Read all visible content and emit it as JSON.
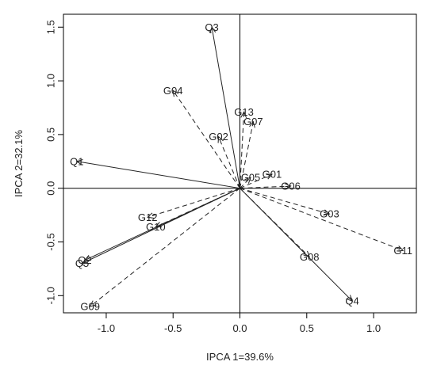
{
  "chart_data": {
    "type": "scatter",
    "subtype": "biplot",
    "title": "",
    "xlabel": "IPCA 1=39.6%",
    "ylabel": "IPCA 2=32.1%",
    "xlim": [
      -1.32,
      1.32
    ],
    "ylim": [
      -1.16,
      1.62
    ],
    "xticks": [
      -1.0,
      -0.5,
      0.0,
      0.5,
      1.0
    ],
    "yticks": [
      -1.0,
      -0.5,
      0.0,
      0.5,
      1.0,
      1.5
    ],
    "xtick_labels": [
      "-1.0",
      "-0.5",
      "0.0",
      "0.5",
      "1.0"
    ],
    "ytick_labels": [
      "-1.0",
      "-0.5",
      "0.0",
      "0.5",
      "1.0",
      "1.5"
    ],
    "grid": false,
    "reference_lines": [
      "x=0",
      "y=0"
    ],
    "series": [
      {
        "name": "",
        "line_style": "solid",
        "points": [
          {
            "label": "Q1",
            "x": -1.22,
            "y": 0.25
          },
          {
            "label": "Q2",
            "x": -1.16,
            "y": -0.67
          },
          {
            "label": "Q3",
            "x": -0.21,
            "y": 1.5
          },
          {
            "label": "Q4",
            "x": 0.84,
            "y": -1.05
          },
          {
            "label": "Q5",
            "x": -1.18,
            "y": -0.7
          }
        ]
      },
      {
        "name": "",
        "line_style": "dashed",
        "points": [
          {
            "label": "G01",
            "x": 0.24,
            "y": 0.13
          },
          {
            "label": "G02",
            "x": -0.16,
            "y": 0.48
          },
          {
            "label": "G03",
            "x": 0.67,
            "y": -0.24
          },
          {
            "label": "G04",
            "x": -0.5,
            "y": 0.91
          },
          {
            "label": "G05",
            "x": 0.08,
            "y": 0.1
          },
          {
            "label": "G06",
            "x": 0.38,
            "y": 0.02
          },
          {
            "label": "G07",
            "x": 0.1,
            "y": 0.62
          },
          {
            "label": "G08",
            "x": 0.52,
            "y": -0.64
          },
          {
            "label": "G09",
            "x": -1.12,
            "y": -1.1
          },
          {
            "label": "G10",
            "x": -0.63,
            "y": -0.36
          },
          {
            "label": "G11",
            "x": 1.22,
            "y": -0.58
          },
          {
            "label": "G12",
            "x": -0.69,
            "y": -0.27
          },
          {
            "label": "G13",
            "x": 0.03,
            "y": 0.71
          }
        ]
      }
    ]
  }
}
